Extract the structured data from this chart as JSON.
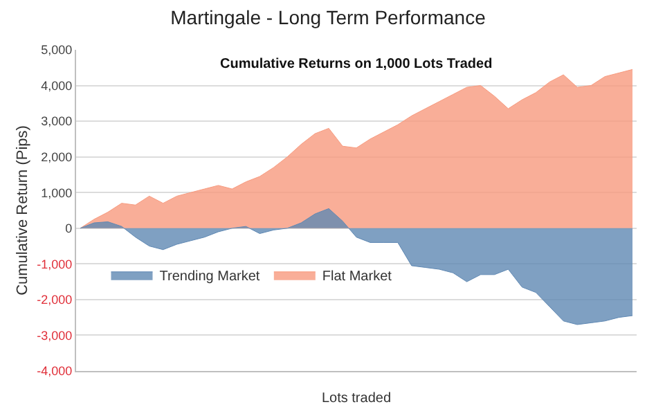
{
  "chart_data": {
    "type": "area",
    "title": "Martingale - Long Term Performance",
    "subtitle": "Cumulative Returns on 1,000 Lots Traded",
    "xlabel": "Lots traded",
    "ylabel": "Cumulative Return (Pips)",
    "categories": [
      null,
      null,
      null,
      null,
      null,
      null,
      null,
      null,
      null,
      null,
      null,
      null,
      null,
      null,
      null,
      null,
      null,
      null,
      null,
      null,
      null,
      null,
      null,
      null,
      null,
      null,
      null,
      null,
      null,
      null,
      null,
      null,
      null,
      null,
      null,
      null,
      null,
      null,
      null,
      null,
      null
    ],
    "series": [
      {
        "name": "Flat Market",
        "color": "#f79a7e",
        "values": [
          0,
          250,
          450,
          700,
          650,
          900,
          700,
          900,
          1000,
          1100,
          1200,
          1100,
          1300,
          1450,
          1700,
          2000,
          2350,
          2650,
          2800,
          2300,
          2250,
          2500,
          2700,
          2900,
          3150,
          3350,
          3550,
          3750,
          3950,
          4000,
          3700,
          3350,
          3600,
          3800,
          4100,
          4300,
          3950,
          4000,
          4250,
          4350,
          4450
        ]
      },
      {
        "name": "Trending Market",
        "color": "#5f88b3",
        "values": [
          0,
          150,
          180,
          50,
          -250,
          -500,
          -600,
          -450,
          -350,
          -250,
          -100,
          0,
          50,
          -150,
          -50,
          0,
          150,
          400,
          550,
          200,
          -250,
          -400,
          -400,
          -400,
          -1050,
          -1100,
          -1150,
          -1250,
          -1500,
          -1300,
          -1300,
          -1150,
          -1650,
          -1800,
          -2200,
          -2600,
          -2700,
          -2650,
          -2600,
          -2500,
          -2450
        ]
      }
    ],
    "ylim": [
      -4000,
      5000
    ],
    "yticks": [
      {
        "value": -4000,
        "label": "-4,000"
      },
      {
        "value": -3000,
        "label": "-3,000"
      },
      {
        "value": -2000,
        "label": "-2,000"
      },
      {
        "value": -1000,
        "label": "-1,000"
      },
      0,
      {
        "value": 1000,
        "label": "1,000"
      },
      {
        "value": 2000,
        "label": "2,000"
      },
      {
        "value": 3000,
        "label": "3,000"
      },
      {
        "value": 4000,
        "label": "4,000"
      },
      {
        "value": 5000,
        "label": "5,000"
      }
    ],
    "grid": "y",
    "legend": "left",
    "tick_labels": "y"
  }
}
